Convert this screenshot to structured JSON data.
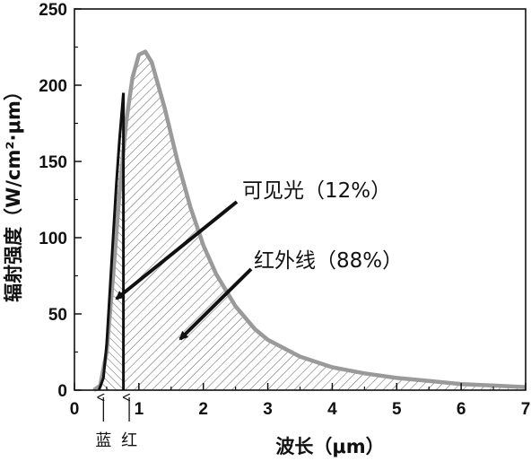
{
  "chart_data": {
    "type": "area",
    "xlabel": "波长（μm）",
    "ylabel": "辐射强度（W/cm²·μm）",
    "xlim": [
      0,
      7
    ],
    "ylim": [
      0,
      250
    ],
    "x_ticks": [
      "0",
      "1",
      "2",
      "3",
      "4",
      "5",
      "6",
      "7"
    ],
    "y_ticks": [
      "0",
      "50",
      "100",
      "150",
      "200",
      "250"
    ],
    "grid": false,
    "series": [
      {
        "x": [
          0.3,
          0.4,
          0.5,
          0.6,
          0.7,
          0.8,
          0.9,
          1.0,
          1.1,
          1.2,
          1.4,
          1.6,
          1.8,
          2.0,
          2.2,
          2.5,
          2.8,
          3.0,
          3.5,
          4.0,
          4.5,
          5.0,
          5.5,
          6.0,
          6.5,
          7.0
        ],
        "y": [
          0,
          3,
          25,
          75,
          130,
          175,
          205,
          220,
          222,
          215,
          185,
          150,
          120,
          95,
          76,
          55,
          40,
          33,
          22,
          15,
          11,
          8,
          6,
          4,
          3,
          2
        ]
      },
      {
        "x": [
          0.38,
          0.45,
          0.5,
          0.55,
          0.6,
          0.65,
          0.7,
          0.76
        ],
        "y": [
          0,
          8,
          30,
          65,
          100,
          135,
          165,
          195
        ]
      }
    ],
    "regions": [
      {
        "label": "可见光（12%）",
        "x_range": [
          0.38,
          0.76
        ]
      },
      {
        "label": "红外线（88%）",
        "x_range": [
          0.76,
          7.0
        ]
      }
    ],
    "markers": [
      {
        "label": "蓝",
        "x": 0.45
      },
      {
        "label": "红",
        "x": 0.85
      }
    ]
  }
}
